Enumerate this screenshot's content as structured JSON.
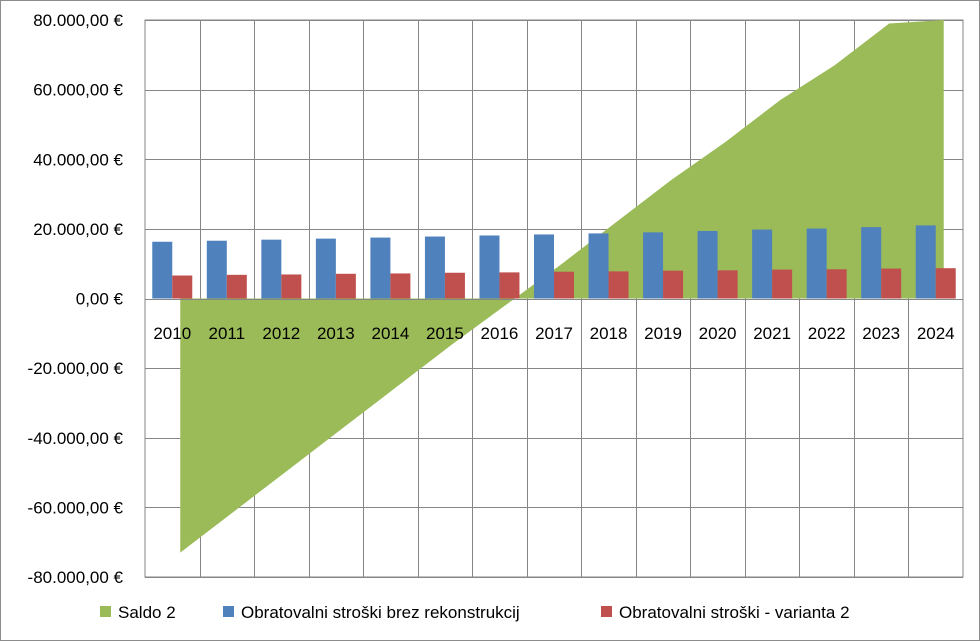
{
  "chart_data": {
    "type": "bar",
    "categories": [
      "2010",
      "2011",
      "2012",
      "2013",
      "2014",
      "2015",
      "2016",
      "2017",
      "2018",
      "2019",
      "2020",
      "2021",
      "2022",
      "2023",
      "2024"
    ],
    "series": [
      {
        "name": "Saldo 2",
        "type": "area",
        "color": "#9bbb59",
        "values": [
          -73000,
          -61000,
          -49000,
          -37000,
          -25000,
          -13000,
          -1500,
          10000,
          22000,
          34000,
          45000,
          57000,
          67000,
          79000,
          80000
        ]
      },
      {
        "name": "Obratovalni stroški brez rekonstrukcij",
        "type": "bar",
        "color": "#4f81bd",
        "values": [
          16300,
          16600,
          16900,
          17200,
          17500,
          17800,
          18100,
          18400,
          18700,
          19000,
          19400,
          19800,
          20100,
          20500,
          21000
        ]
      },
      {
        "name": "Obratovalni stroški - varianta 2",
        "type": "bar",
        "color": "#c0504d",
        "values": [
          6600,
          6800,
          6900,
          7100,
          7200,
          7400,
          7500,
          7700,
          7800,
          8000,
          8100,
          8300,
          8400,
          8600,
          8700
        ]
      }
    ],
    "y_ticks": [
      "80.000,00 €",
      "60.000,00 €",
      "40.000,00 €",
      "20.000,00 €",
      "0,00 €",
      "-20.000,00 €",
      "-40.000,00 €",
      "-60.000,00 €",
      "-80.000,00 €"
    ],
    "ylim": [
      -80000,
      80000
    ],
    "grid": true,
    "legend_position": "bottom"
  }
}
